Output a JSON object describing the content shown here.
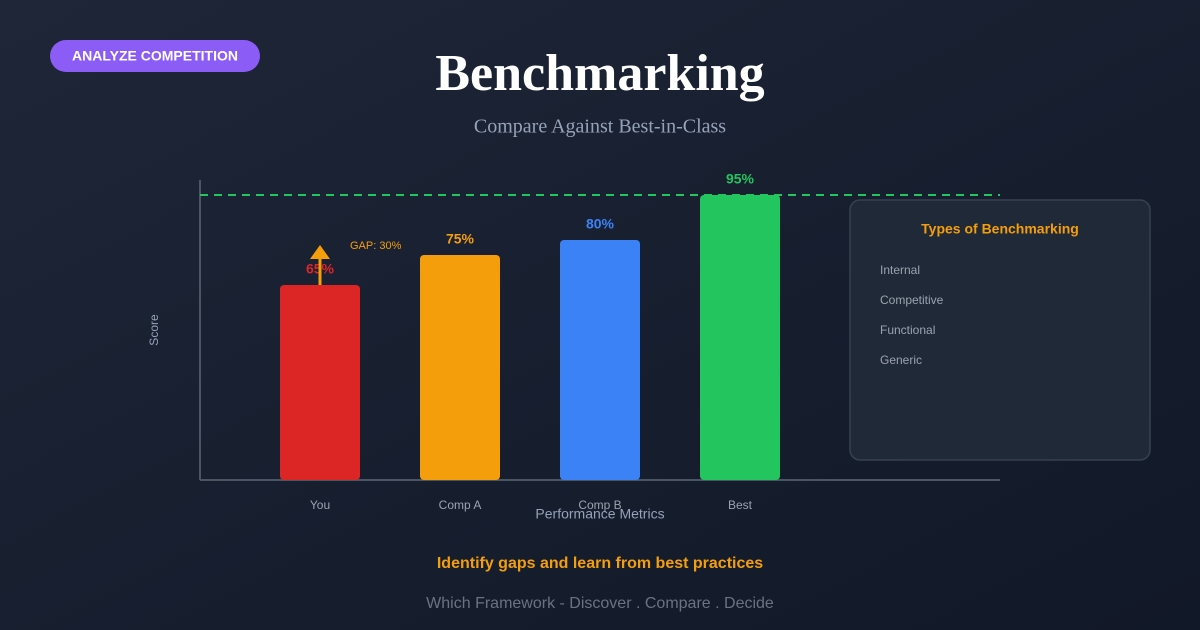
{
  "badge": "ANALYZE COMPETITION",
  "chart_data": {
    "type": "bar",
    "title": "Benchmarking",
    "subtitle": "Compare Against Best-in-Class",
    "x_label": "Performance Metrics",
    "y_label": "Score",
    "categories": [
      "You",
      "Comp A",
      "Comp B",
      "Best"
    ],
    "values": [
      65,
      75,
      80,
      95
    ],
    "value_labels": [
      "65%",
      "75%",
      "80%",
      "95%"
    ],
    "colors": [
      "#dc2626",
      "#f59e0b",
      "#3b82f6",
      "#22c55e"
    ],
    "ylim": [
      0,
      100
    ],
    "annotation": "GAP: 30%"
  },
  "panel": {
    "title": "Types of Benchmarking",
    "items": [
      "Internal",
      "Competitive",
      "Functional",
      "Generic"
    ]
  },
  "tagline": "Identify gaps and learn from best practices",
  "footer": "Which Framework - Discover . Compare . Decide"
}
